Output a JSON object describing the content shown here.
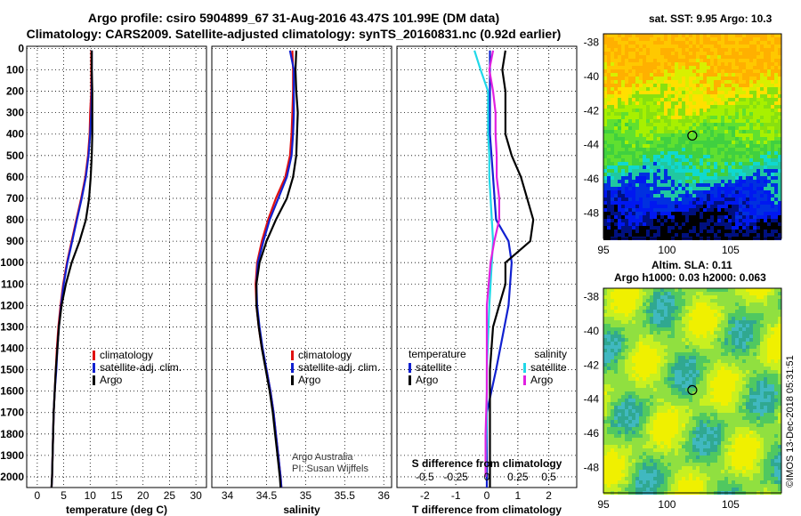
{
  "header": {
    "line1": "Argo profile: csiro 5904899_67 31-Aug-2016 43.47S 101.99E (DM data)",
    "line2": "Climatology: CARS2009. Satellite-adjusted climatology: synTS_20160831.nc (0.92d earlier)"
  },
  "colors": {
    "climatology": "#e01010",
    "satellite": "#1020d0",
    "argo": "#000000",
    "sal_satellite": "#20d8e8",
    "sal_argo": "#e020e0"
  },
  "chart_data": [
    {
      "type": "line",
      "name": "temperature-profile",
      "xlabel": "temperature (deg C)",
      "xlim": [
        -2,
        32
      ],
      "xticks": [
        "0",
        "5",
        "10",
        "15",
        "20",
        "25",
        "30"
      ],
      "ylim": [
        2050,
        -10
      ],
      "yticks": [
        "0",
        "100",
        "200",
        "300",
        "400",
        "500",
        "600",
        "700",
        "800",
        "900",
        "1000",
        "1100",
        "1200",
        "1300",
        "1400",
        "1500",
        "1600",
        "1700",
        "1800",
        "1900",
        "2000"
      ],
      "legend": [
        "climatology",
        "satellite-adj. clim.",
        "Argo"
      ],
      "series": [
        {
          "name": "climatology",
          "points": [
            [
              10.2,
              10
            ],
            [
              10.2,
              100
            ],
            [
              10.2,
              200
            ],
            [
              10,
              300
            ],
            [
              9.9,
              400
            ],
            [
              9.6,
              500
            ],
            [
              9.1,
              600
            ],
            [
              8.3,
              700
            ],
            [
              7.4,
              800
            ],
            [
              6.5,
              900
            ],
            [
              5.6,
              1000
            ],
            [
              4.9,
              1100
            ],
            [
              4.4,
              1200
            ],
            [
              4,
              1300
            ],
            [
              3.7,
              1400
            ],
            [
              3.5,
              1500
            ],
            [
              3.3,
              1600
            ],
            [
              3.1,
              1700
            ],
            [
              3,
              1800
            ],
            [
              2.9,
              1900
            ],
            [
              2.8,
              2000
            ],
            [
              2.7,
              2050
            ]
          ]
        },
        {
          "name": "satellite-adj. clim.",
          "points": [
            [
              10.3,
              10
            ],
            [
              10.3,
              100
            ],
            [
              10.3,
              200
            ],
            [
              10.2,
              300
            ],
            [
              10,
              400
            ],
            [
              9.7,
              500
            ],
            [
              9.2,
              600
            ],
            [
              8.4,
              700
            ],
            [
              7.5,
              800
            ],
            [
              6.6,
              900
            ],
            [
              5.7,
              1000
            ],
            [
              5,
              1100
            ],
            [
              4.5,
              1200
            ],
            [
              4.1,
              1300
            ],
            [
              3.8,
              1400
            ],
            [
              3.6,
              1500
            ],
            [
              3.3,
              1600
            ],
            [
              3.1,
              1700
            ],
            [
              3,
              1800
            ],
            [
              2.9,
              1900
            ],
            [
              2.8,
              2000
            ],
            [
              2.7,
              2050
            ]
          ]
        },
        {
          "name": "Argo",
          "points": [
            [
              10.3,
              10
            ],
            [
              10.3,
              100
            ],
            [
              10.4,
              200
            ],
            [
              10.4,
              300
            ],
            [
              10.4,
              400
            ],
            [
              10.3,
              500
            ],
            [
              10.1,
              600
            ],
            [
              9.8,
              700
            ],
            [
              9.2,
              800
            ],
            [
              8,
              900
            ],
            [
              6.5,
              1000
            ],
            [
              5.4,
              1100
            ],
            [
              4.6,
              1200
            ],
            [
              4.1,
              1300
            ],
            [
              3.8,
              1400
            ],
            [
              3.5,
              1500
            ],
            [
              3.3,
              1600
            ],
            [
              3.1,
              1700
            ],
            [
              3,
              1800
            ],
            [
              2.9,
              1900
            ],
            [
              2.8,
              2000
            ],
            [
              2.7,
              2050
            ]
          ]
        }
      ]
    },
    {
      "type": "line",
      "name": "salinity-profile",
      "xlabel": "salinity",
      "xlim": [
        33.8,
        36.1
      ],
      "xticks": [
        "34",
        "34.5",
        "35",
        "35.5",
        "36"
      ],
      "ylim": [
        2050,
        -10
      ],
      "legend": [
        "climatology",
        "satellite-adj. clim.",
        "Argo"
      ],
      "series": [
        {
          "name": "climatology",
          "points": [
            [
              34.83,
              10
            ],
            [
              34.84,
              100
            ],
            [
              34.84,
              200
            ],
            [
              34.83,
              300
            ],
            [
              34.82,
              400
            ],
            [
              34.8,
              500
            ],
            [
              34.74,
              600
            ],
            [
              34.62,
              700
            ],
            [
              34.52,
              800
            ],
            [
              34.44,
              900
            ],
            [
              34.38,
              1000
            ],
            [
              34.36,
              1100
            ],
            [
              34.37,
              1200
            ],
            [
              34.4,
              1300
            ],
            [
              34.44,
              1400
            ],
            [
              34.5,
              1500
            ],
            [
              34.55,
              1600
            ],
            [
              34.59,
              1700
            ],
            [
              34.62,
              1800
            ],
            [
              34.65,
              1900
            ],
            [
              34.68,
              2000
            ],
            [
              34.69,
              2050
            ]
          ]
        },
        {
          "name": "satellite-adj. clim.",
          "points": [
            [
              34.8,
              10
            ],
            [
              34.85,
              100
            ],
            [
              34.85,
              200
            ],
            [
              34.85,
              300
            ],
            [
              34.84,
              400
            ],
            [
              34.82,
              500
            ],
            [
              34.76,
              600
            ],
            [
              34.65,
              700
            ],
            [
              34.54,
              800
            ],
            [
              34.46,
              900
            ],
            [
              34.39,
              1000
            ],
            [
              34.37,
              1100
            ],
            [
              34.38,
              1200
            ],
            [
              34.41,
              1300
            ],
            [
              34.45,
              1400
            ],
            [
              34.5,
              1500
            ],
            [
              34.55,
              1600
            ],
            [
              34.59,
              1700
            ],
            [
              34.62,
              1800
            ],
            [
              34.65,
              1900
            ],
            [
              34.68,
              2000
            ],
            [
              34.69,
              2050
            ]
          ]
        },
        {
          "name": "Argo",
          "points": [
            [
              34.88,
              10
            ],
            [
              34.87,
              100
            ],
            [
              34.88,
              200
            ],
            [
              34.9,
              300
            ],
            [
              34.89,
              400
            ],
            [
              34.88,
              500
            ],
            [
              34.84,
              600
            ],
            [
              34.76,
              700
            ],
            [
              34.62,
              800
            ],
            [
              34.5,
              900
            ],
            [
              34.41,
              1000
            ],
            [
              34.37,
              1100
            ],
            [
              34.37,
              1200
            ],
            [
              34.4,
              1300
            ],
            [
              34.44,
              1400
            ],
            [
              34.49,
              1500
            ],
            [
              34.54,
              1600
            ],
            [
              34.58,
              1700
            ],
            [
              34.61,
              1800
            ],
            [
              34.64,
              1900
            ],
            [
              34.67,
              2000
            ],
            [
              34.68,
              2050
            ]
          ]
        }
      ]
    },
    {
      "type": "line",
      "name": "difference-profile",
      "xlabel": "T difference from climatology",
      "xlim": [
        -2.9,
        2.9
      ],
      "xticks": [
        "-2",
        "-1",
        "0",
        "1",
        "2"
      ],
      "top_xlabel": "S difference from climatology",
      "top_xticks": [
        "-0.5",
        "-0.25",
        "0",
        "0.25",
        "0.5"
      ],
      "ylim": [
        2050,
        -10
      ],
      "legend_left_title": "temperature",
      "legend_right_title": "salinity",
      "legend_left": [
        "satellite",
        "Argo"
      ],
      "legend_right": [
        "satellite",
        "Argo"
      ],
      "series": [
        {
          "name": "T satellite",
          "points": [
            [
              0.1,
              10
            ],
            [
              0.1,
              100
            ],
            [
              0.1,
              200
            ],
            [
              0.1,
              300
            ],
            [
              0.1,
              400
            ],
            [
              0.2,
              600
            ],
            [
              0.3,
              800
            ],
            [
              0.7,
              900
            ],
            [
              0.8,
              1000
            ],
            [
              0.7,
              1200
            ],
            [
              0.3,
              1500
            ],
            [
              0,
              1700
            ],
            [
              0,
              2000
            ],
            [
              0,
              2050
            ]
          ]
        },
        {
          "name": "T Argo",
          "points": [
            [
              0.6,
              10
            ],
            [
              0.5,
              100
            ],
            [
              0.6,
              200
            ],
            [
              0.6,
              300
            ],
            [
              0.6,
              400
            ],
            [
              0.8,
              500
            ],
            [
              1.1,
              600
            ],
            [
              1.3,
              700
            ],
            [
              1.5,
              800
            ],
            [
              1.4,
              900
            ],
            [
              0.6,
              1000
            ],
            [
              0.6,
              1100
            ],
            [
              0.4,
              1200
            ],
            [
              0.2,
              1300
            ],
            [
              0.1,
              1500
            ],
            [
              0.1,
              1700
            ],
            [
              0.1,
              1900
            ],
            [
              0.1,
              2000
            ],
            [
              0.1,
              2050
            ]
          ]
        },
        {
          "name": "S satellite",
          "points": [
            [
              -0.1,
              10
            ],
            [
              -0.05,
              100
            ],
            [
              0.01,
              200
            ],
            [
              0.01,
              300
            ],
            [
              0.01,
              400
            ],
            [
              0.02,
              500
            ],
            [
              0.02,
              600
            ],
            [
              0.03,
              700
            ],
            [
              0.04,
              800
            ],
            [
              0.05,
              900
            ],
            [
              0.04,
              1000
            ],
            [
              0.02,
              1200
            ],
            [
              0,
              1500
            ],
            [
              0,
              1700
            ],
            [
              -0.01,
              2000
            ]
          ]
        },
        {
          "name": "S Argo",
          "points": [
            [
              0.05,
              10
            ],
            [
              0.02,
              100
            ],
            [
              0.05,
              200
            ],
            [
              0.07,
              300
            ],
            [
              0.07,
              400
            ],
            [
              0.08,
              500
            ],
            [
              0.08,
              600
            ],
            [
              0.1,
              700
            ],
            [
              0.1,
              800
            ],
            [
              0.06,
              900
            ],
            [
              0.03,
              1000
            ],
            [
              0,
              1200
            ],
            [
              0,
              1400
            ],
            [
              0,
              1600
            ],
            [
              -0.01,
              1800
            ],
            [
              -0.01,
              2000
            ]
          ]
        }
      ]
    },
    {
      "type": "heatmap",
      "name": "sst-map",
      "title": "sat. SST: 9.95 Argo: 10.3",
      "xticks": [
        "95",
        "100",
        "105"
      ],
      "yticks": [
        "-38",
        "-40",
        "-42",
        "-44",
        "-46",
        "-48"
      ],
      "xlim": [
        95,
        109
      ],
      "ylim": [
        -49.5,
        -37.5
      ],
      "marker": [
        101.99,
        -43.47
      ]
    },
    {
      "type": "heatmap",
      "name": "sla-map",
      "title": "Altim. SLA: 0.11",
      "subtitle": "Argo h1000: 0.03 h2000: 0.063",
      "xticks": [
        "95",
        "100",
        "105"
      ],
      "yticks": [
        "-38",
        "-40",
        "-42",
        "-44",
        "-46",
        "-48"
      ],
      "xlim": [
        95,
        109
      ],
      "ylim": [
        -49.5,
        -37.5
      ],
      "marker": [
        101.99,
        -43.47
      ]
    }
  ],
  "credits": {
    "line1": "Argo Australia",
    "line2": "PI: Susan Wijffels"
  },
  "stamp": "©IMOS 13-Dec-2018 05:31:51"
}
